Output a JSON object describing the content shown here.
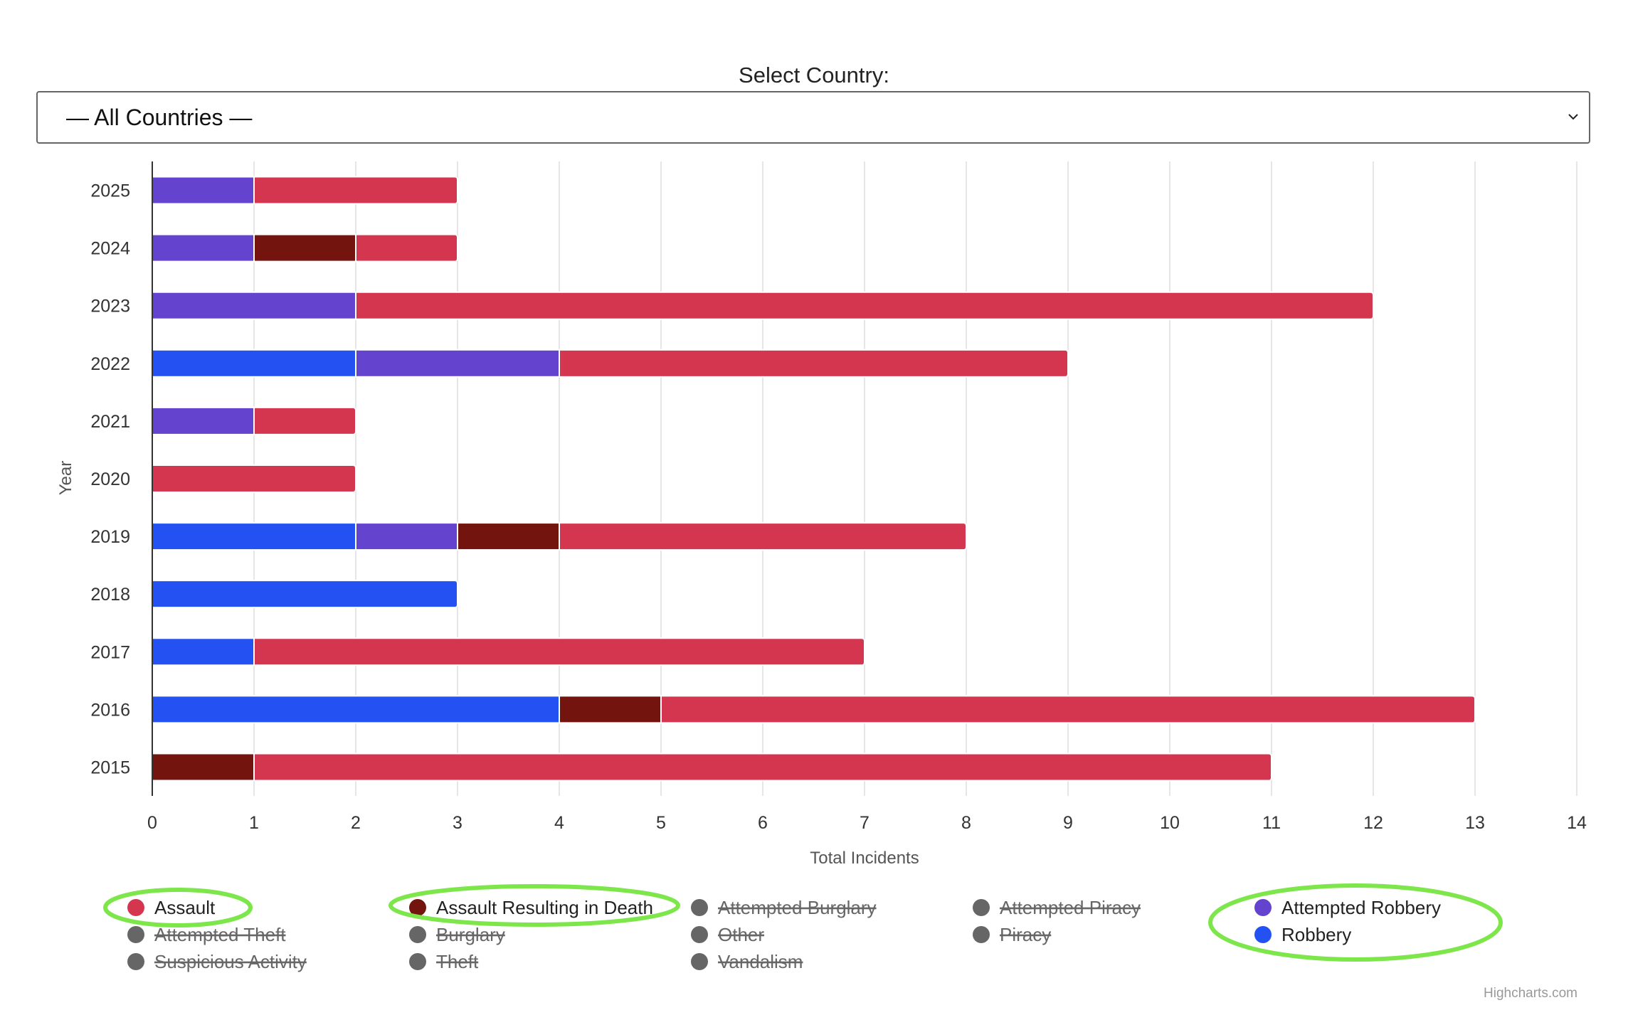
{
  "selector": {
    "label": "Select Country:",
    "value": "— All Countries —"
  },
  "credits": "Highcharts.com",
  "chart_data": {
    "type": "bar",
    "stacked": true,
    "orientation": "horizontal",
    "xlabel": "Year",
    "ylabel": "Total Incidents",
    "ylim": [
      0,
      14
    ],
    "ticks": [
      0,
      1,
      2,
      3,
      4,
      5,
      6,
      7,
      8,
      9,
      10,
      11,
      12,
      13,
      14
    ],
    "grid": true,
    "legend_position": "bottom",
    "categories": [
      "2025",
      "2024",
      "2023",
      "2022",
      "2021",
      "2020",
      "2019",
      "2018",
      "2017",
      "2016",
      "2015"
    ],
    "series": [
      {
        "name": "Robbery",
        "color": "#2452f2",
        "visible": true,
        "values": [
          0,
          0,
          0,
          2,
          0,
          0,
          2,
          3,
          1,
          4,
          0
        ]
      },
      {
        "name": "Attempted Robbery",
        "color": "#6444cf",
        "visible": true,
        "values": [
          1,
          1,
          2,
          2,
          1,
          0,
          1,
          0,
          0,
          0,
          0
        ]
      },
      {
        "name": "Assault Resulting in Death",
        "color": "#74140e",
        "visible": true,
        "values": [
          0,
          1,
          0,
          0,
          0,
          0,
          1,
          0,
          0,
          1,
          1
        ]
      },
      {
        "name": "Assault",
        "color": "#d4364f",
        "visible": true,
        "values": [
          2,
          1,
          10,
          5,
          1,
          2,
          4,
          0,
          6,
          8,
          10
        ]
      }
    ],
    "legend": [
      {
        "name": "Assault",
        "color": "#d4364f",
        "visible": true,
        "highlighted": true
      },
      {
        "name": "Assault Resulting in Death",
        "color": "#74140e",
        "visible": true,
        "highlighted": true
      },
      {
        "name": "Attempted Burglary",
        "color": "#666666",
        "visible": false
      },
      {
        "name": "Attempted Piracy",
        "color": "#666666",
        "visible": false
      },
      {
        "name": "Attempted Robbery",
        "color": "#6444cf",
        "visible": true,
        "highlighted": true
      },
      {
        "name": "Attempted Theft",
        "color": "#666666",
        "visible": false
      },
      {
        "name": "Burglary",
        "color": "#666666",
        "visible": false
      },
      {
        "name": "Other",
        "color": "#666666",
        "visible": false
      },
      {
        "name": "Piracy",
        "color": "#666666",
        "visible": false
      },
      {
        "name": "Robbery",
        "color": "#2452f2",
        "visible": true,
        "highlighted": true
      },
      {
        "name": "Suspicious Activity",
        "color": "#666666",
        "visible": false
      },
      {
        "name": "Theft",
        "color": "#666666",
        "visible": false
      },
      {
        "name": "Vandalism",
        "color": "#666666",
        "visible": false
      }
    ],
    "highlight_color": "#7de64a"
  }
}
